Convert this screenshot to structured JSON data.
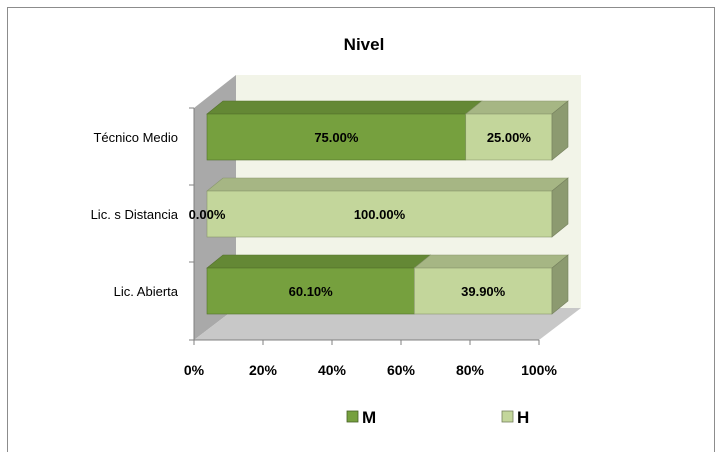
{
  "chart_data": {
    "type": "bar",
    "orientation": "horizontal",
    "stacked": "100%",
    "style": "3d",
    "title": "Nivel",
    "categories": [
      "Técnico Medio",
      "Lic. s Distancia",
      "Lic. Abierta"
    ],
    "series": [
      {
        "name": "M",
        "values": [
          75.0,
          0.0,
          60.1
        ],
        "labels": [
          "75.00%",
          "0.00%",
          "60.10%"
        ],
        "color": "#76a03e"
      },
      {
        "name": "H",
        "values": [
          25.0,
          100.0,
          39.9
        ],
        "labels": [
          "25.00%",
          "100.00%",
          "39.90%"
        ],
        "color": "#c3d69b"
      }
    ],
    "xaxis": {
      "ticks": [
        "0%",
        "20%",
        "40%",
        "60%",
        "80%",
        "100%"
      ],
      "range": [
        0,
        100
      ]
    },
    "legend": {
      "position": "bottom"
    },
    "grid": false,
    "colors": {
      "wall": "#f2f4e8",
      "floor": "#c8c8c8",
      "side_wall": "#a9a9a9"
    }
  }
}
